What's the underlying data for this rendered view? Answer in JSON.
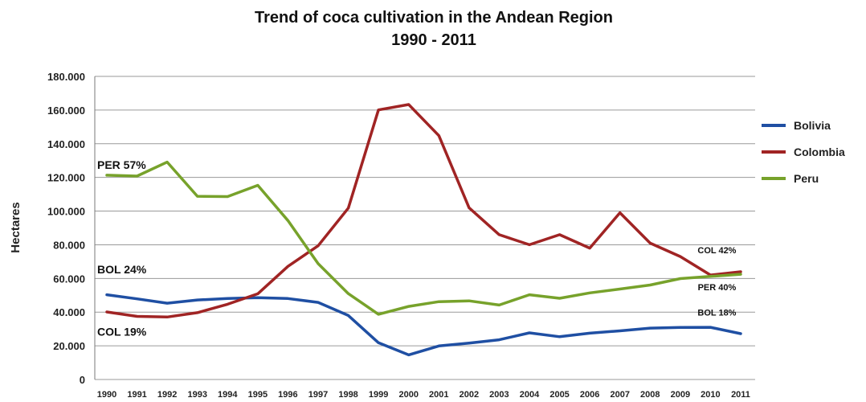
{
  "chart_data": {
    "type": "line",
    "title": "Trend of coca cultivation in the Andean Region",
    "subtitle": "1990 - 2011",
    "ylabel": "Hectares",
    "xlabel": "",
    "x": [
      "1990",
      "1991",
      "1992",
      "1993",
      "1994",
      "1995",
      "1996",
      "1997",
      "1998",
      "1999",
      "2000",
      "2001",
      "2002",
      "2003",
      "2004",
      "2005",
      "2006",
      "2007",
      "2008",
      "2009",
      "2010",
      "2011"
    ],
    "ylim": [
      0,
      180000
    ],
    "yticks": [
      0,
      20000,
      40000,
      60000,
      80000,
      100000,
      120000,
      140000,
      160000,
      180000
    ],
    "ytick_labels": [
      "0",
      "20.000",
      "40.000",
      "60.000",
      "80.000",
      "100.000",
      "120.000",
      "140.000",
      "160.000",
      "180.000"
    ],
    "grid": true,
    "legend_position": "right",
    "series": [
      {
        "name": "Bolivia",
        "color": "#1f4fa3",
        "values": [
          50300,
          47900,
          45300,
          47200,
          48100,
          48600,
          48100,
          45800,
          38000,
          21800,
          14600,
          19900,
          21600,
          23600,
          27700,
          25400,
          27500,
          28900,
          30500,
          30900,
          31000,
          27200
        ]
      },
      {
        "name": "Colombia",
        "color": "#a02424",
        "values": [
          40100,
          37500,
          37100,
          39700,
          44700,
          50900,
          67200,
          79400,
          101800,
          160100,
          163300,
          144800,
          102000,
          86000,
          80000,
          86000,
          78000,
          99000,
          81000,
          73000,
          62000,
          64000
        ]
      },
      {
        "name": "Peru",
        "color": "#77a22b",
        "values": [
          121300,
          120800,
          129100,
          108800,
          108600,
          115300,
          94400,
          68800,
          51000,
          38700,
          43400,
          46200,
          46700,
          44200,
          50300,
          48200,
          51400,
          53700,
          56100,
          59900,
          61200,
          62500
        ]
      }
    ],
    "annotations": [
      {
        "text": "PER 57%",
        "x": "1990",
        "y": 125000,
        "size": "large"
      },
      {
        "text": "BOL 24%",
        "x": "1990",
        "y": 63000,
        "size": "large"
      },
      {
        "text": "COL 19%",
        "x": "1990",
        "y": 26000,
        "size": "large"
      },
      {
        "text": "COL 42%",
        "x": "2010",
        "y": 75000,
        "size": "small"
      },
      {
        "text": "PER 40%",
        "x": "2010",
        "y": 53000,
        "size": "small"
      },
      {
        "text": "BOL 18%",
        "x": "2010",
        "y": 38000,
        "size": "small"
      }
    ]
  }
}
